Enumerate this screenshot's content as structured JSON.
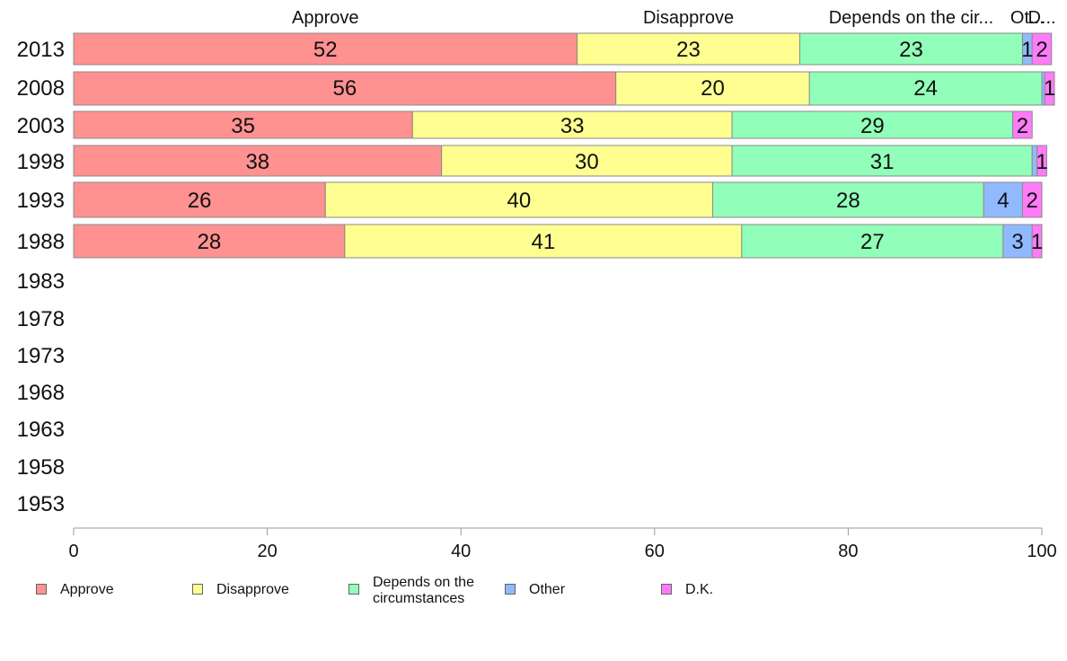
{
  "chart_data": {
    "type": "bar",
    "orientation": "horizontal",
    "stacked": true,
    "categories": [
      "2013",
      "2008",
      "2003",
      "1998",
      "1993",
      "1988",
      "1983",
      "1978",
      "1973",
      "1968",
      "1963",
      "1958",
      "1953"
    ],
    "series": [
      {
        "name": "Approve",
        "color": "#ff9191",
        "values": [
          52,
          56,
          35,
          38,
          26,
          28,
          null,
          null,
          null,
          null,
          null,
          null,
          null
        ]
      },
      {
        "name": "Disapprove",
        "color": "#ffff91",
        "values": [
          23,
          20,
          33,
          30,
          40,
          41,
          null,
          null,
          null,
          null,
          null,
          null,
          null
        ]
      },
      {
        "name": "Depends on the circumstances",
        "color": "#91ffb9",
        "values": [
          23,
          24,
          29,
          31,
          28,
          27,
          null,
          null,
          null,
          null,
          null,
          null,
          null
        ]
      },
      {
        "name": "Other",
        "color": "#91b9ff",
        "values": [
          1,
          0.3,
          0,
          0.5,
          4,
          3,
          null,
          null,
          null,
          null,
          null,
          null,
          null
        ]
      },
      {
        "name": "D.K.",
        "color": "#ff7bf7",
        "values": [
          2,
          1,
          2,
          1,
          2,
          1,
          null,
          null,
          null,
          null,
          null,
          null,
          null
        ]
      }
    ],
    "data_labels": [
      [
        "52",
        "23",
        "23",
        "1",
        "2"
      ],
      [
        "56",
        "20",
        "24",
        "",
        "1"
      ],
      [
        "35",
        "33",
        "29",
        "",
        "2"
      ],
      [
        "38",
        "30",
        "31",
        "",
        "1"
      ],
      [
        "26",
        "40",
        "28",
        "4",
        "2"
      ],
      [
        "28",
        "41",
        "27",
        "3",
        "1"
      ]
    ],
    "top_labels": [
      "Approve",
      "Disapprove",
      "Depends on the cir...",
      "Ot...",
      "D..."
    ],
    "xlim": [
      0,
      100
    ],
    "xticks": [
      "0",
      "20",
      "40",
      "60",
      "80",
      "100"
    ],
    "grid": false,
    "legend_position": "bottom"
  },
  "legend": {
    "items": [
      {
        "label": "Approve",
        "color": "#ff9191"
      },
      {
        "label": "Disapprove",
        "color": "#ffff91"
      },
      {
        "label": "Depends on the circumstances",
        "color": "#91ffb9"
      },
      {
        "label": "Other",
        "color": "#91b9ff"
      },
      {
        "label": "D.K.",
        "color": "#ff7bf7"
      }
    ]
  }
}
